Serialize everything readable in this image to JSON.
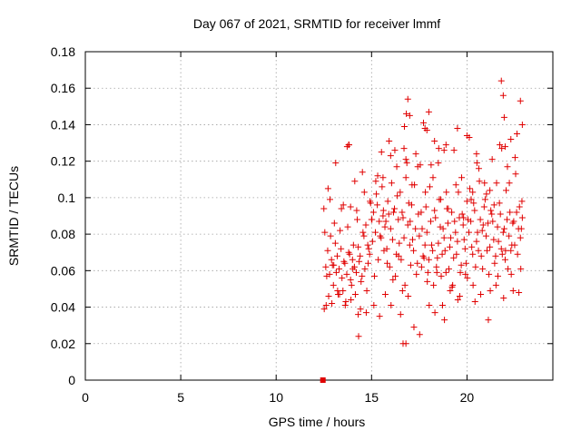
{
  "chart_data": {
    "type": "scatter",
    "title": "Day 067 of 2021, SRMTID for receiver lmmf",
    "xlabel": "GPS time / hours",
    "ylabel": "SRMTID / TECUs",
    "xlim": [
      0,
      24.5
    ],
    "ylim": [
      0,
      0.18
    ],
    "xticks": [
      0,
      5,
      10,
      15,
      20
    ],
    "xtick_labels": [
      "0",
      "5",
      "10",
      "15",
      "20"
    ],
    "yticks": [
      0,
      0.02,
      0.04,
      0.06,
      0.08,
      0.1,
      0.12,
      0.14,
      0.16,
      0.18
    ],
    "ytick_labels": [
      "0",
      "0.02",
      "0.04",
      "0.06",
      "0.08",
      "0.1",
      "0.12",
      "0.14",
      "0.16",
      "0.18"
    ],
    "grid": true,
    "marker_color": "#e00000",
    "zero_marker": {
      "x": 12.45,
      "y": 0
    },
    "series": [
      {
        "name": "SRMTID",
        "x": [
          12.5,
          12.6,
          12.7,
          12.8,
          12.9,
          13.0,
          13.1,
          13.2,
          13.3,
          13.4,
          13.5,
          13.6,
          13.7,
          13.8,
          13.9,
          14.0,
          14.1,
          14.2,
          14.3,
          14.4,
          14.5,
          14.6,
          14.7,
          14.8,
          14.9,
          15.0,
          15.1,
          15.2,
          15.3,
          15.4,
          15.5,
          15.6,
          15.7,
          15.8,
          15.9,
          16.0,
          16.1,
          16.2,
          16.3,
          16.4,
          16.5,
          16.6,
          16.7,
          16.8,
          16.9,
          17.0,
          17.1,
          17.2,
          17.3,
          17.4,
          17.5,
          17.6,
          17.7,
          17.8,
          17.9,
          18.0,
          18.1,
          18.2,
          18.3,
          18.4,
          18.5,
          18.6,
          18.7,
          18.8,
          18.9,
          19.0,
          19.1,
          19.2,
          19.3,
          19.4,
          19.5,
          19.6,
          19.7,
          19.8,
          19.9,
          20.0,
          20.1,
          20.2,
          20.3,
          20.4,
          20.5,
          20.6,
          20.7,
          20.8,
          20.9,
          21.0,
          21.1,
          21.2,
          21.3,
          21.4,
          21.5,
          21.6,
          21.7,
          21.8,
          21.9,
          22.0,
          22.1,
          22.2,
          22.3,
          22.4,
          22.5,
          22.6,
          22.7,
          22.8,
          22.9,
          12.55,
          12.65,
          12.75,
          12.85,
          12.95,
          13.05,
          13.15,
          13.25,
          13.35,
          13.45,
          13.55,
          13.65,
          13.75,
          13.85,
          13.95,
          14.05,
          14.15,
          14.25,
          14.35,
          14.45,
          14.55,
          14.65,
          14.75,
          14.85,
          14.95,
          15.05,
          15.15,
          15.25,
          15.35,
          15.45,
          15.55,
          15.65,
          15.75,
          15.85,
          15.95,
          16.05,
          16.15,
          16.25,
          16.35,
          16.45,
          16.55,
          16.65,
          16.75,
          16.85,
          16.95,
          17.05,
          17.15,
          17.25,
          17.35,
          17.45,
          17.55,
          17.65,
          17.75,
          17.85,
          17.95,
          18.05,
          18.15,
          18.25,
          18.35,
          18.45,
          18.55,
          18.65,
          18.75,
          18.85,
          18.95,
          19.05,
          19.15,
          19.25,
          19.35,
          19.45,
          19.55,
          19.65,
          19.75,
          19.85,
          19.95,
          20.05,
          20.15,
          20.25,
          20.35,
          20.45,
          20.55,
          20.65,
          20.75,
          20.85,
          20.95,
          21.05,
          21.15,
          21.25,
          21.35,
          21.45,
          21.55,
          21.65,
          21.75,
          21.85,
          21.95,
          22.05,
          22.15,
          22.25,
          22.35,
          22.45,
          22.55,
          22.65,
          22.75,
          22.85,
          12.52,
          12.72,
          12.92,
          13.12,
          13.32,
          13.52,
          13.72,
          13.92,
          14.12,
          14.32,
          14.52,
          14.72,
          14.92,
          15.12,
          15.32,
          15.52,
          15.72,
          15.92,
          16.12,
          16.32,
          16.52,
          16.72,
          16.92,
          17.12,
          17.32,
          17.52,
          17.72,
          17.92,
          18.12,
          18.32,
          18.52,
          18.72,
          18.92,
          19.12,
          19.32,
          19.52,
          19.72,
          19.92,
          20.12,
          20.32,
          20.52,
          20.72,
          20.92,
          21.12,
          21.32,
          21.52,
          21.72,
          21.92,
          22.12,
          22.32,
          22.52,
          22.72,
          22.88,
          12.62,
          12.82,
          13.02,
          13.22,
          13.42,
          13.62,
          13.82,
          14.02,
          14.22,
          14.42,
          14.62,
          14.82,
          15.02,
          15.22,
          15.42,
          15.62,
          15.82,
          16.02,
          16.22,
          16.42,
          16.62,
          16.82,
          17.02,
          17.22,
          17.42,
          17.62,
          17.82,
          18.02,
          18.22,
          18.42,
          18.62,
          18.82,
          19.02,
          19.22,
          19.42,
          19.62,
          19.82,
          20.02,
          20.22,
          20.42,
          20.62,
          20.82,
          21.02,
          21.22,
          21.42,
          21.62,
          21.82,
          22.02,
          22.22,
          22.42,
          22.62,
          22.82
        ],
        "y": [
          0.094,
          0.062,
          0.071,
          0.058,
          0.066,
          0.052,
          0.075,
          0.068,
          0.061,
          0.072,
          0.049,
          0.064,
          0.058,
          0.07,
          0.055,
          0.066,
          0.062,
          0.059,
          0.073,
          0.068,
          0.057,
          0.079,
          0.085,
          0.074,
          0.069,
          0.088,
          0.092,
          0.081,
          0.096,
          0.087,
          0.078,
          0.09,
          0.084,
          0.072,
          0.091,
          0.083,
          0.077,
          0.094,
          0.069,
          0.088,
          0.103,
          0.092,
          0.078,
          0.111,
          0.085,
          0.074,
          0.096,
          0.071,
          0.083,
          0.064,
          0.079,
          0.092,
          0.068,
          0.074,
          0.081,
          0.066,
          0.087,
          0.071,
          0.093,
          0.062,
          0.075,
          0.084,
          0.069,
          0.078,
          0.059,
          0.086,
          0.073,
          0.092,
          0.067,
          0.081,
          0.076,
          0.089,
          0.063,
          0.085,
          0.072,
          0.098,
          0.081,
          0.087,
          0.069,
          0.093,
          0.076,
          0.071,
          0.088,
          0.082,
          0.095,
          0.079,
          0.086,
          0.073,
          0.091,
          0.077,
          0.068,
          0.084,
          0.097,
          0.072,
          0.081,
          0.066,
          0.088,
          0.079,
          0.071,
          0.086,
          0.074,
          0.092,
          0.083,
          0.078,
          0.089,
          0.081,
          0.057,
          0.046,
          0.079,
          0.063,
          0.086,
          0.059,
          0.047,
          0.082,
          0.056,
          0.065,
          0.043,
          0.084,
          0.069,
          0.052,
          0.074,
          0.047,
          0.088,
          0.065,
          0.054,
          0.081,
          0.061,
          0.049,
          0.072,
          0.097,
          0.076,
          0.057,
          0.102,
          0.066,
          0.079,
          0.106,
          0.071,
          0.087,
          0.098,
          0.062,
          0.108,
          0.092,
          0.057,
          0.101,
          0.075,
          0.066,
          0.089,
          0.052,
          0.119,
          0.097,
          0.063,
          0.077,
          0.107,
          0.058,
          0.091,
          0.118,
          0.083,
          0.067,
          0.095,
          0.059,
          0.106,
          0.074,
          0.052,
          0.089,
          0.067,
          0.099,
          0.057,
          0.083,
          0.071,
          0.094,
          0.061,
          0.078,
          0.052,
          0.087,
          0.069,
          0.103,
          0.059,
          0.091,
          0.077,
          0.064,
          0.088,
          0.105,
          0.073,
          0.097,
          0.062,
          0.081,
          0.109,
          0.068,
          0.085,
          0.099,
          0.071,
          0.058,
          0.093,
          0.087,
          0.064,
          0.108,
          0.076,
          0.091,
          0.069,
          0.083,
          0.104,
          0.061,
          0.092,
          0.074,
          0.087,
          0.113,
          0.069,
          0.095,
          0.083,
          0.039,
          0.105,
          0.042,
          0.119,
          0.047,
          0.096,
          0.128,
          0.044,
          0.109,
          0.024,
          0.114,
          0.037,
          0.098,
          0.041,
          0.112,
          0.125,
          0.047,
          0.131,
          0.055,
          0.117,
          0.036,
          0.139,
          0.046,
          0.107,
          0.124,
          0.025,
          0.141,
          0.054,
          0.118,
          0.037,
          0.127,
          0.041,
          0.103,
          0.049,
          0.126,
          0.044,
          0.111,
          0.058,
          0.133,
          0.052,
          0.119,
          0.047,
          0.108,
          0.033,
          0.121,
          0.052,
          0.129,
          0.045,
          0.117,
          0.058,
          0.122,
          0.048,
          0.098,
          0.041,
          0.099,
          0.063,
          0.049,
          0.094,
          0.041,
          0.129,
          0.061,
          0.093,
          0.039,
          0.103,
          0.064,
          0.088,
          0.109,
          0.035,
          0.093,
          0.064,
          0.041,
          0.126,
          0.068,
          0.049,
          0.146,
          0.087,
          0.029,
          0.117,
          0.062,
          0.103,
          0.041,
          0.111,
          0.059,
          0.099,
          0.033,
          0.094,
          0.051,
          0.107,
          0.046,
          0.089,
          0.056,
          0.099,
          0.043,
          0.116,
          0.061,
          0.102,
          0.049,
          0.096,
          0.057,
          0.127,
          0.071,
          0.108,
          0.049,
          0.135,
          0.061
        ]
      }
    ],
    "extra_points": {
      "x": [
        16.9,
        17.0,
        16.7,
        16.8,
        21.8,
        21.9,
        22.8,
        22.9,
        18.3,
        18.8,
        18.9,
        18.0,
        17.8,
        13.8,
        16.8,
        19.5,
        20.0,
        20.3,
        20.5,
        21.2,
        22.3,
        21.95,
        17.9,
        16.65,
        15.6,
        22.0,
        14.3,
        13.9,
        18.5,
        16.0
      ],
      "y": [
        0.154,
        0.145,
        0.127,
        0.121,
        0.164,
        0.156,
        0.153,
        0.14,
        0.131,
        0.126,
        0.129,
        0.147,
        0.138,
        0.129,
        0.02,
        0.138,
        0.134,
        0.103,
        0.124,
        0.104,
        0.132,
        0.144,
        0.137,
        0.02,
        0.111,
        0.128,
        0.036,
        0.095,
        0.119,
        0.123
      ]
    }
  }
}
